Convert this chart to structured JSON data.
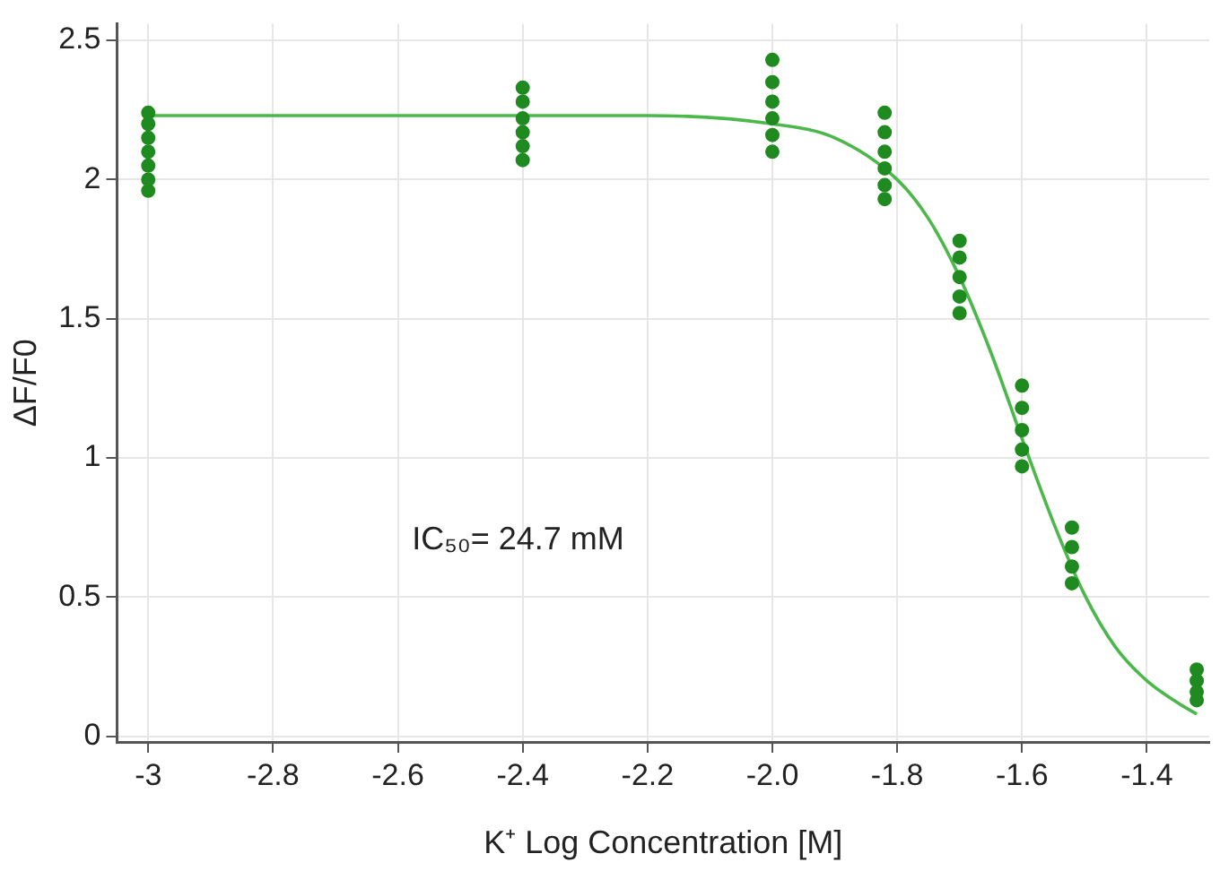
{
  "chart_data": {
    "type": "scatter",
    "xlabel": "K⁺ Log Concentration [M]",
    "ylabel": "ΔF/F0",
    "annotations": [
      "IC₅₀= 24.7 mM"
    ],
    "xlim": [
      -3.05,
      -1.3
    ],
    "xticks": [
      -3,
      -2.8,
      -2.6,
      -2.4,
      -2.2,
      {
        "value": -2,
        "label": "-2.0"
      },
      -1.8,
      -1.6,
      -1.4
    ],
    "ylim": [
      -0.02,
      2.56
    ],
    "yticks": [
      0,
      0.5,
      1,
      1.5,
      2,
      2.5
    ],
    "grid": true,
    "legend": false,
    "marker": "circle",
    "series": [
      {
        "color": "#1f8a1f",
        "x": [
          -3,
          -3,
          -3,
          -3,
          -3,
          -3,
          -3,
          -2.4,
          -2.4,
          -2.4,
          -2.4,
          -2.4,
          -2.4,
          -2,
          -2,
          -2,
          -2,
          -2,
          -2,
          -1.82,
          -1.82,
          -1.82,
          -1.82,
          -1.82,
          -1.82,
          -1.7,
          -1.7,
          -1.7,
          -1.7,
          -1.7,
          -1.6,
          -1.6,
          -1.6,
          -1.6,
          -1.6,
          -1.52,
          -1.52,
          -1.52,
          -1.52,
          -1.32,
          -1.32,
          -1.32,
          -1.32
        ],
        "values": [
          2.24,
          2.2,
          2.15,
          2.1,
          2.05,
          2.0,
          1.96,
          2.33,
          2.28,
          2.22,
          2.17,
          2.12,
          2.07,
          2.43,
          2.35,
          2.28,
          2.22,
          2.16,
          2.1,
          2.24,
          2.17,
          2.1,
          2.04,
          1.98,
          1.93,
          1.78,
          1.72,
          1.65,
          1.58,
          1.52,
          1.26,
          1.18,
          1.1,
          1.03,
          0.97,
          0.75,
          0.68,
          0.61,
          0.55,
          0.24,
          0.2,
          0.16,
          0.13
        ]
      },
      {
        "type": "line",
        "color": "#4cb84c",
        "marker": "none",
        "x": [
          -3,
          -2.4,
          -2.2,
          -2,
          -1.9,
          -1.8,
          -1.75,
          -1.7,
          -1.65,
          -1.6,
          -1.55,
          -1.5,
          -1.45,
          -1.4,
          -1.35,
          -1.32
        ],
        "values": [
          2.23,
          2.23,
          2.23,
          2.2,
          2.15,
          2.0,
          1.86,
          1.65,
          1.38,
          1.07,
          0.77,
          0.51,
          0.32,
          0.2,
          0.12,
          0.08
        ]
      }
    ]
  }
}
